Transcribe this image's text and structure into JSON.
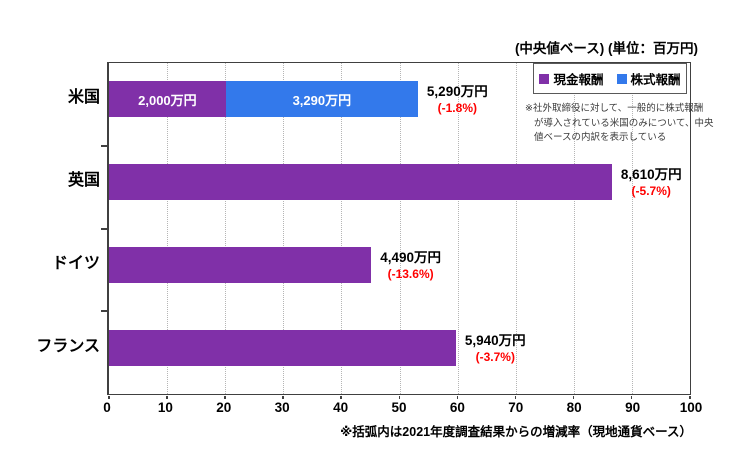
{
  "header": {
    "title": "(中央値ベース) (単位：百万円)"
  },
  "legend": {
    "items": [
      {
        "label": "現金報酬",
        "color": "#8030A8"
      },
      {
        "label": "株式報酬",
        "color": "#3379EB"
      }
    ]
  },
  "side_note": {
    "lines": [
      "※社外取締役に対して、一般的に株式報酬",
      "が導入されている米国のみについて、中央",
      "値ベースの内訳を表示している"
    ]
  },
  "footer": {
    "note": "※括弧内は2021年度調査結果からの増減率（現地通貨ベース）"
  },
  "colors": {
    "cash": "#8030A8",
    "stock": "#3379EB",
    "change": "#FF0000",
    "axis": "#404040",
    "gridline": "#B5B5B5"
  },
  "chart_data": {
    "type": "bar",
    "orientation": "horizontal",
    "title": "(中央値ベース) (単位：百万円)",
    "unit": "百万円",
    "categories": [
      "米国",
      "英国",
      "ドイツ",
      "フランス"
    ],
    "series": [
      {
        "name": "現金報酬",
        "color": "#8030A8",
        "values": [
          20.0,
          86.1,
          44.9,
          59.4
        ]
      },
      {
        "name": "株式報酬",
        "color": "#3379EB",
        "values": [
          32.9,
          0,
          0,
          0
        ]
      }
    ],
    "segment_labels": [
      [
        "2,000万円",
        "3,290万円"
      ],
      [
        "",
        ""
      ],
      [
        "",
        ""
      ],
      [
        "",
        ""
      ]
    ],
    "total_values": [
      52.9,
      86.1,
      44.9,
      59.4
    ],
    "totals": [
      {
        "label": "5,290万円",
        "change": "(-1.8%)"
      },
      {
        "label": "8,610万円",
        "change": "(-5.7%)"
      },
      {
        "label": "4,490万円",
        "change": "(-13.6%)"
      },
      {
        "label": "5,940万円",
        "change": "(-3.7%)"
      }
    ],
    "xlim": [
      0,
      100
    ],
    "x_ticks": [
      0,
      10,
      20,
      30,
      40,
      50,
      60,
      70,
      80,
      90,
      100
    ],
    "grid": "vertical-dotted",
    "legend_position": "inside-top-right"
  }
}
